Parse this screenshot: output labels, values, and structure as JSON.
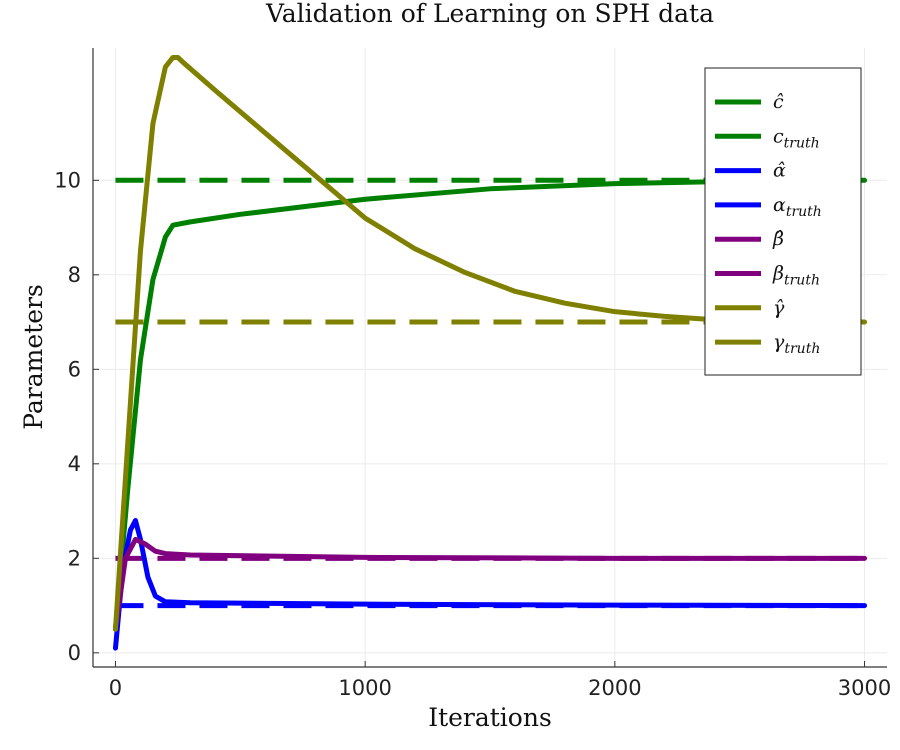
{
  "chart_data": {
    "type": "line",
    "title": "Validation of Learning on SPH data",
    "xlabel": "Iterations",
    "ylabel": "Parameters",
    "xlim": [
      -90,
      3090
    ],
    "ylim": [
      -0.3,
      12.8
    ],
    "xticks": [
      0,
      1000,
      2000,
      3000
    ],
    "yticks": [
      0,
      2,
      4,
      6,
      8,
      10
    ],
    "grid": true,
    "legend_position": "top-right",
    "series": [
      {
        "name": "ĉ",
        "color": "#008000",
        "dash": false,
        "x": [
          0,
          50,
          100,
          150,
          200,
          230,
          300,
          500,
          1000,
          1500,
          2000,
          2500,
          3000
        ],
        "y": [
          0.5,
          3.5,
          6.2,
          7.9,
          8.8,
          9.05,
          9.12,
          9.28,
          9.6,
          9.82,
          9.93,
          9.98,
          10.0
        ]
      },
      {
        "name": "c_truth",
        "color": "#008000",
        "dash": true,
        "x": [
          0,
          3000
        ],
        "y": [
          10,
          10
        ]
      },
      {
        "name": "α̂",
        "color": "#0000ff",
        "dash": false,
        "x": [
          0,
          30,
          60,
          80,
          100,
          130,
          160,
          200,
          300,
          1000,
          2000,
          3000
        ],
        "y": [
          0.1,
          1.8,
          2.6,
          2.8,
          2.4,
          1.6,
          1.2,
          1.08,
          1.06,
          1.03,
          1.01,
          1.0
        ]
      },
      {
        "name": "α_truth",
        "color": "#0000ff",
        "dash": true,
        "x": [
          0,
          3000
        ],
        "y": [
          1,
          1
        ]
      },
      {
        "name": "β̂",
        "color": "#800080",
        "dash": false,
        "x": [
          0,
          40,
          80,
          120,
          160,
          200,
          300,
          1000,
          2000,
          3000
        ],
        "y": [
          0.5,
          2.0,
          2.4,
          2.3,
          2.15,
          2.1,
          2.07,
          2.02,
          2.0,
          2.0
        ]
      },
      {
        "name": "β_truth",
        "color": "#800080",
        "dash": true,
        "x": [
          0,
          3000
        ],
        "y": [
          2,
          2
        ]
      },
      {
        "name": "γ̂",
        "color": "#808000",
        "dash": false,
        "x": [
          0,
          50,
          100,
          150,
          200,
          230,
          250,
          270,
          400,
          600,
          800,
          1000,
          1200,
          1400,
          1600,
          1800,
          2000,
          2200,
          2400,
          2600,
          3000
        ],
        "y": [
          0.5,
          4.5,
          8.5,
          11.2,
          12.4,
          12.6,
          12.6,
          12.5,
          11.9,
          11.0,
          10.1,
          9.2,
          8.55,
          8.05,
          7.65,
          7.4,
          7.22,
          7.12,
          7.05,
          7.02,
          7.0
        ]
      },
      {
        "name": "γ_truth",
        "color": "#808000",
        "dash": true,
        "x": [
          0,
          3000
        ],
        "y": [
          7,
          7
        ]
      }
    ]
  },
  "legend": {
    "items": [
      {
        "main": "ĉ",
        "sub": ""
      },
      {
        "main": "c",
        "sub": "truth"
      },
      {
        "main": "α̂",
        "sub": ""
      },
      {
        "main": "α",
        "sub": "truth"
      },
      {
        "main": "β̂",
        "sub": ""
      },
      {
        "main": "β",
        "sub": "truth"
      },
      {
        "main": "γ̂",
        "sub": ""
      },
      {
        "main": "γ",
        "sub": "truth"
      }
    ]
  }
}
